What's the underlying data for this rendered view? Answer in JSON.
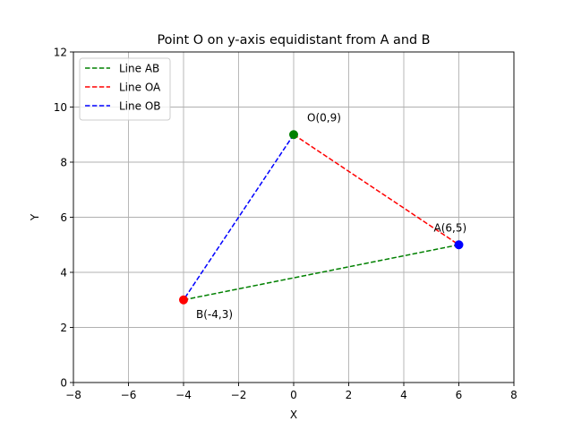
{
  "chart_data": {
    "type": "line",
    "title": "Point O on y-axis equidistant from A and B",
    "xlabel": "X",
    "ylabel": "Y",
    "xlim": [
      -8,
      8
    ],
    "ylim": [
      0,
      12
    ],
    "xticks": [
      -8,
      -6,
      -4,
      -2,
      0,
      2,
      4,
      6,
      8
    ],
    "xtick_labels": [
      "−8",
      "−6",
      "−4",
      "−2",
      "0",
      "2",
      "4",
      "6",
      "8"
    ],
    "yticks": [
      0,
      2,
      4,
      6,
      8,
      10,
      12
    ],
    "ytick_labels": [
      "0",
      "2",
      "4",
      "6",
      "8",
      "10",
      "12"
    ],
    "grid": true,
    "legend_position": "top-left",
    "series": [
      {
        "name": "Line AB",
        "color": "#008000",
        "style": "dashed",
        "x": [
          6,
          -4
        ],
        "y": [
          5,
          3
        ]
      },
      {
        "name": "Line OA",
        "color": "#ff0000",
        "style": "dashed",
        "x": [
          0,
          6
        ],
        "y": [
          9,
          5
        ]
      },
      {
        "name": "Line OB",
        "color": "#0000ff",
        "style": "dashed",
        "x": [
          0,
          -4
        ],
        "y": [
          9,
          3
        ]
      }
    ],
    "points": [
      {
        "label": "A(6,5)",
        "x": 6,
        "y": 5,
        "color": "#0000ff"
      },
      {
        "label": "B(-4,3)",
        "x": -4,
        "y": 3,
        "color": "#ff0000"
      },
      {
        "label": "O(0,9)",
        "x": 0,
        "y": 9,
        "color": "#008000"
      }
    ]
  }
}
